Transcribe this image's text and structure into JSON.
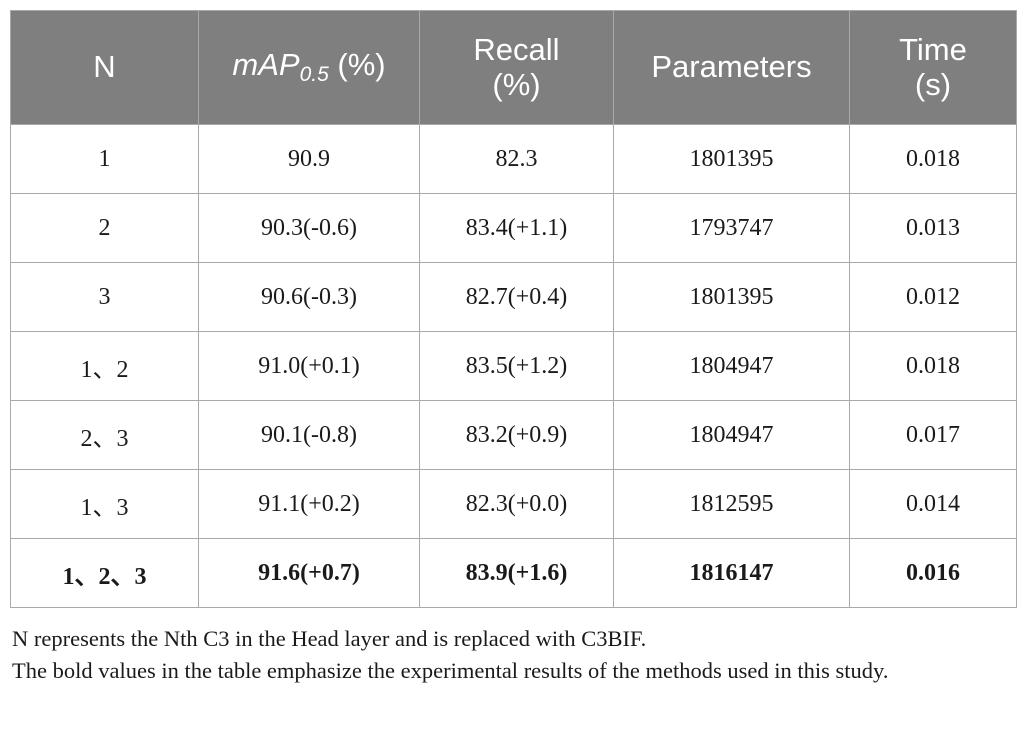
{
  "table": {
    "headers": {
      "n": "N",
      "map_main": "mAP",
      "map_sub": "0.5",
      "map_unit": " (%)",
      "recall_line1": "Recall",
      "recall_line2": "(%)",
      "parameters": "Parameters",
      "time_line1": "Time",
      "time_line2": "(s)"
    },
    "rows": [
      [
        "1",
        "90.9",
        "82.3",
        "1801395",
        "0.018"
      ],
      [
        "2",
        "90.3(-0.6)",
        "83.4(+1.1)",
        "1793747",
        "0.013"
      ],
      [
        "3",
        "90.6(-0.3)",
        "82.7(+0.4)",
        "1801395",
        "0.012"
      ],
      [
        "1、2",
        "91.0(+0.1)",
        "83.5(+1.2)",
        "1804947",
        "0.018"
      ],
      [
        "2、3",
        "90.1(-0.8)",
        "83.2(+0.9)",
        "1804947",
        "0.017"
      ],
      [
        "1、3",
        "91.1(+0.2)",
        "82.3(+0.0)",
        "1812595",
        "0.014"
      ],
      [
        "1、2、3",
        "91.6(+0.7)",
        "83.9(+1.6)",
        "1816147",
        "0.016"
      ]
    ]
  },
  "footnotes": {
    "line1": "N represents the Nth C3 in the Head layer and is replaced with C3BIF.",
    "line2": "The bold values in the table emphasize the experimental results of the methods used in this study."
  }
}
